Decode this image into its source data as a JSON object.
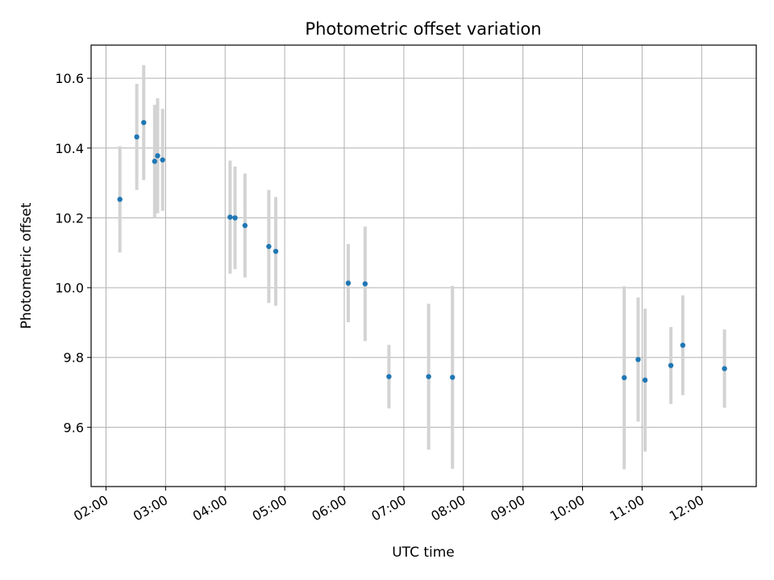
{
  "chart_data": {
    "type": "scatter",
    "title": "Photometric offset variation",
    "xlabel": "UTC time",
    "ylabel": "Photometric offset",
    "x_unit": "hours UTC",
    "xlim": [
      "01:45",
      "12:55"
    ],
    "ylim": [
      9.43,
      10.695
    ],
    "grid": true,
    "marker_color": "#1f77b4",
    "errorbar_color": "#d3d3d3",
    "x_ticks": [
      "02:00",
      "03:00",
      "04:00",
      "05:00",
      "06:00",
      "07:00",
      "08:00",
      "09:00",
      "10:00",
      "11:00",
      "12:00"
    ],
    "y_ticks": [
      9.6,
      9.8,
      10.0,
      10.2,
      10.4,
      10.6
    ],
    "y_tick_labels": [
      "9.6",
      "9.8",
      "10.0",
      "10.2",
      "10.4",
      "10.6"
    ],
    "points": [
      {
        "x": "02:14",
        "y": 10.253,
        "err": 0.152
      },
      {
        "x": "02:31",
        "y": 10.432,
        "err": 0.152
      },
      {
        "x": "02:38",
        "y": 10.473,
        "err": 0.165
      },
      {
        "x": "02:49",
        "y": 10.362,
        "err": 0.162
      },
      {
        "x": "02:52",
        "y": 10.378,
        "err": 0.165
      },
      {
        "x": "02:57",
        "y": 10.366,
        "err": 0.146
      },
      {
        "x": "04:05",
        "y": 10.202,
        "err": 0.162
      },
      {
        "x": "04:10",
        "y": 10.2,
        "err": 0.147
      },
      {
        "x": "04:20",
        "y": 10.178,
        "err": 0.149
      },
      {
        "x": "04:44",
        "y": 10.118,
        "err": 0.162
      },
      {
        "x": "04:51",
        "y": 10.104,
        "err": 0.156
      },
      {
        "x": "06:04",
        "y": 10.013,
        "err": 0.112
      },
      {
        "x": "06:21",
        "y": 10.011,
        "err": 0.164
      },
      {
        "x": "06:45",
        "y": 9.745,
        "err": 0.091
      },
      {
        "x": "07:25",
        "y": 9.745,
        "err": 0.209
      },
      {
        "x": "07:49",
        "y": 9.743,
        "err": 0.262
      },
      {
        "x": "10:42",
        "y": 9.742,
        "err": 0.262
      },
      {
        "x": "10:56",
        "y": 9.794,
        "err": 0.178
      },
      {
        "x": "11:03",
        "y": 9.735,
        "err": 0.205
      },
      {
        "x": "11:29",
        "y": 9.777,
        "err": 0.11
      },
      {
        "x": "11:41",
        "y": 9.835,
        "err": 0.143
      },
      {
        "x": "12:23",
        "y": 9.768,
        "err": 0.112
      }
    ]
  }
}
